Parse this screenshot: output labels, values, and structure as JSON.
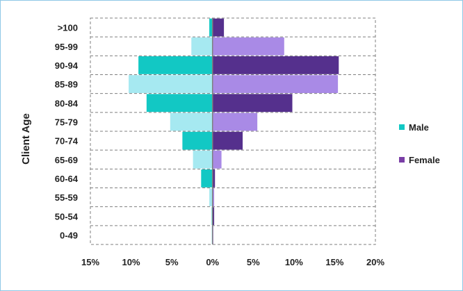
{
  "chart_data": {
    "type": "bar",
    "orientation": "horizontal-population-pyramid",
    "ylabel": "Client Age",
    "categories": [
      "0-49",
      "50-54",
      "55-59",
      "60-64",
      "65-69",
      "70-74",
      "75-79",
      "80-84",
      "85-89",
      "90-94",
      "95-99",
      ">100"
    ],
    "xlim": [
      -15,
      20
    ],
    "x_ticks": [
      -15,
      -10,
      -5,
      0,
      5,
      10,
      15,
      20
    ],
    "x_tick_labels": [
      "15%",
      "10%",
      "5%",
      "0%",
      "5%",
      "10%",
      "15%",
      "20%"
    ],
    "grid": true,
    "legend_position": "right",
    "series": [
      {
        "name": "Male",
        "values": [
          -0.1,
          -0.1,
          -0.4,
          -1.4,
          -2.4,
          -3.7,
          -5.2,
          -8.1,
          -10.3,
          -9.1,
          -2.6,
          -0.4
        ],
        "color_dark": "#12c8c4",
        "color_light": "#a6e9f1"
      },
      {
        "name": "Female",
        "values": [
          0.1,
          0.2,
          0.2,
          0.3,
          1.1,
          3.7,
          5.5,
          9.8,
          15.4,
          15.5,
          8.8,
          1.4
        ],
        "color_dark": "#55308d",
        "color_light": "#a98ae6"
      }
    ]
  },
  "legend": {
    "male_color": "#12c8c4",
    "female_color": "#7a3ea6"
  }
}
